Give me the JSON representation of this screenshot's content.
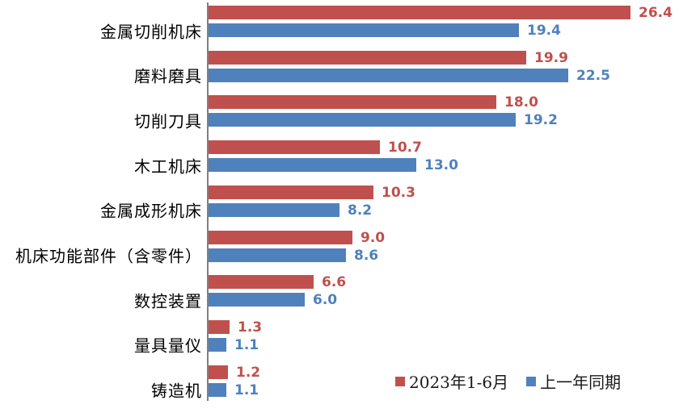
{
  "chart_data": {
    "type": "bar",
    "orientation": "horizontal",
    "title": "",
    "xlabel": "",
    "ylabel": "",
    "xlim": [
      0,
      30.8
    ],
    "grid": false,
    "legend_position": "bottom",
    "value_labels": true,
    "value_format": "one-decimal",
    "categories": [
      "金属切削机床",
      "磨料磨具",
      "切削刀具",
      "木工机床",
      "金属成形机床",
      "机床功能部件（含零件）",
      "数控装置",
      "量具量仪",
      "铸造机"
    ],
    "series": [
      {
        "name": "2023年1-6月",
        "color": "#C0504D",
        "values": [
          26.4,
          19.9,
          18.0,
          10.7,
          10.3,
          9.0,
          6.6,
          1.3,
          1.2
        ]
      },
      {
        "name": "上一年同期",
        "color": "#4F81BD",
        "values": [
          19.4,
          22.5,
          19.2,
          13.0,
          8.2,
          8.6,
          6.0,
          1.1,
          1.1
        ]
      }
    ]
  },
  "colors": {
    "axis_line": "#808080",
    "category_text": "#000000",
    "legend_text": "#1a1a1a",
    "background": "#ffffff"
  }
}
